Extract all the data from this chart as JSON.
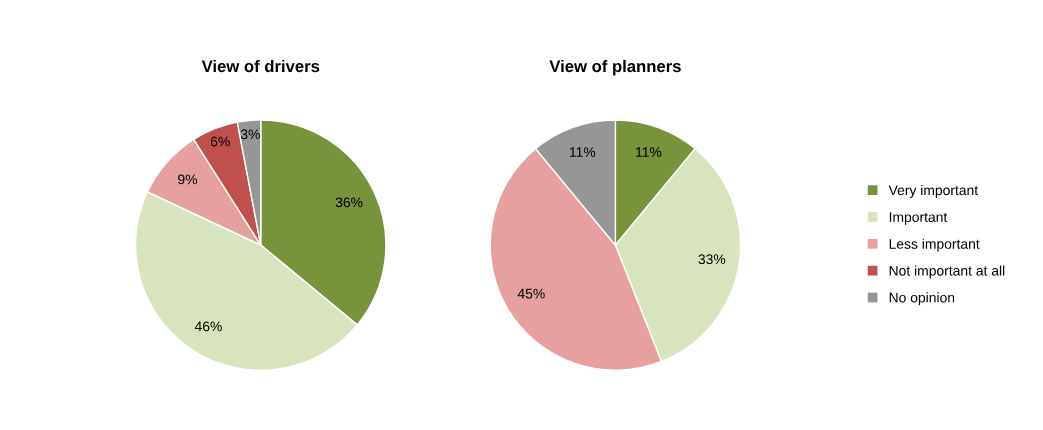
{
  "chart_data": [
    {
      "type": "pie",
      "title": "View of drivers",
      "categories": [
        "Very important",
        "Important",
        "Less important",
        "Not important at all",
        "No opinion"
      ],
      "values": [
        36,
        46,
        9,
        6,
        3
      ],
      "colors": [
        "#77933c",
        "#d7e4bd",
        "#e6a0a0",
        "#c0504d",
        "#969696"
      ],
      "value_labels": [
        "36%",
        "46%",
        "9%",
        "6%",
        "3%"
      ],
      "legend": "right"
    },
    {
      "type": "pie",
      "title": "View of planners",
      "categories": [
        null,
        null,
        null,
        null,
        null
      ],
      "values": [
        11,
        33,
        45,
        0,
        11
      ],
      "colors": [
        "#77933c",
        "#d7e4bd",
        "#e6a0a0",
        "#c0504d",
        "#969696"
      ],
      "value_labels": [
        "11%",
        "33%",
        "45%",
        null,
        "11%"
      ],
      "legend": false
    }
  ]
}
